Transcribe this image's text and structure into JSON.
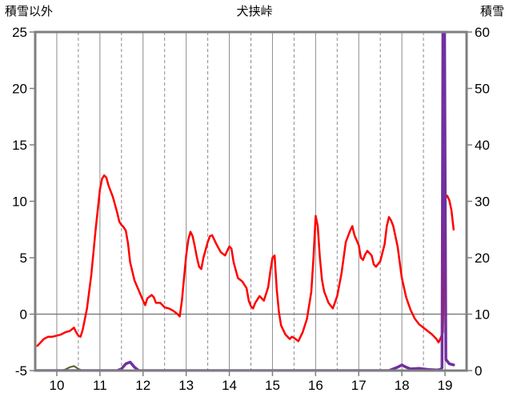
{
  "header": {
    "left_axis_title": "積雪以外",
    "chart_title": "犬挟峠",
    "right_axis_title": "積雪"
  },
  "chart_data": {
    "type": "line",
    "title": "犬挟峠",
    "grid": "vertical-only",
    "legend": "none",
    "x_axis": {
      "min": 9.5,
      "max": 19.5,
      "ticks": [
        10,
        11,
        12,
        13,
        14,
        15,
        16,
        17,
        18,
        19
      ]
    },
    "left_axis": {
      "label": "積雪以外",
      "min": -5,
      "max": 25,
      "ticks": [
        -5,
        0,
        5,
        10,
        15,
        20,
        25
      ]
    },
    "right_axis": {
      "label": "積雪",
      "min": 0,
      "max": 60,
      "ticks": [
        0,
        10,
        20,
        30,
        40,
        50,
        60
      ]
    },
    "series": [
      {
        "id": "green-line",
        "axis": "right",
        "color": "#4f6228",
        "width": 2,
        "points": [
          [
            9.5,
            0
          ],
          [
            10.1,
            0
          ],
          [
            10.2,
            0.2
          ],
          [
            10.3,
            0.6
          ],
          [
            10.4,
            0.8
          ],
          [
            10.5,
            0.3
          ],
          [
            10.6,
            0
          ],
          [
            13.0,
            0
          ],
          [
            16.0,
            0
          ],
          [
            19.2,
            0
          ]
        ]
      },
      {
        "id": "red-line",
        "axis": "left",
        "color": "#ff0000",
        "width": 2.5,
        "points": [
          [
            9.55,
            -2.8
          ],
          [
            9.6,
            -2.6
          ],
          [
            9.7,
            -2.2
          ],
          [
            9.8,
            -2.0
          ],
          [
            9.9,
            -2.0
          ],
          [
            10.0,
            -1.9
          ],
          [
            10.1,
            -1.8
          ],
          [
            10.2,
            -1.6
          ],
          [
            10.3,
            -1.5
          ],
          [
            10.4,
            -1.2
          ],
          [
            10.45,
            -1.6
          ],
          [
            10.5,
            -1.9
          ],
          [
            10.55,
            -2.0
          ],
          [
            10.6,
            -1.4
          ],
          [
            10.7,
            0.5
          ],
          [
            10.8,
            3.5
          ],
          [
            10.9,
            7.5
          ],
          [
            11.0,
            11.0
          ],
          [
            11.05,
            12.0
          ],
          [
            11.1,
            12.3
          ],
          [
            11.15,
            12.1
          ],
          [
            11.2,
            11.4
          ],
          [
            11.3,
            10.4
          ],
          [
            11.4,
            9.0
          ],
          [
            11.45,
            8.2
          ],
          [
            11.5,
            7.9
          ],
          [
            11.55,
            7.7
          ],
          [
            11.6,
            7.4
          ],
          [
            11.65,
            6.3
          ],
          [
            11.7,
            4.6
          ],
          [
            11.8,
            3.0
          ],
          [
            11.9,
            2.1
          ],
          [
            12.0,
            1.2
          ],
          [
            12.05,
            0.8
          ],
          [
            12.1,
            1.4
          ],
          [
            12.2,
            1.7
          ],
          [
            12.25,
            1.5
          ],
          [
            12.3,
            1.0
          ],
          [
            12.4,
            1.0
          ],
          [
            12.5,
            0.6
          ],
          [
            12.6,
            0.5
          ],
          [
            12.7,
            0.3
          ],
          [
            12.8,
            0.0
          ],
          [
            12.85,
            -0.2
          ],
          [
            12.9,
            1.2
          ],
          [
            13.0,
            5.2
          ],
          [
            13.05,
            6.6
          ],
          [
            13.1,
            7.3
          ],
          [
            13.15,
            6.9
          ],
          [
            13.2,
            6.0
          ],
          [
            13.25,
            5.0
          ],
          [
            13.3,
            4.2
          ],
          [
            13.35,
            4.0
          ],
          [
            13.4,
            5.0
          ],
          [
            13.5,
            6.4
          ],
          [
            13.55,
            6.9
          ],
          [
            13.6,
            7.0
          ],
          [
            13.7,
            6.2
          ],
          [
            13.8,
            5.5
          ],
          [
            13.9,
            5.2
          ],
          [
            13.95,
            5.6
          ],
          [
            14.0,
            6.0
          ],
          [
            14.05,
            5.8
          ],
          [
            14.1,
            4.6
          ],
          [
            14.2,
            3.2
          ],
          [
            14.3,
            2.9
          ],
          [
            14.4,
            2.3
          ],
          [
            14.45,
            1.2
          ],
          [
            14.5,
            0.7
          ],
          [
            14.55,
            0.5
          ],
          [
            14.6,
            1.0
          ],
          [
            14.7,
            1.6
          ],
          [
            14.8,
            1.2
          ],
          [
            14.9,
            2.4
          ],
          [
            14.95,
            3.8
          ],
          [
            15.0,
            5.0
          ],
          [
            15.05,
            5.2
          ],
          [
            15.1,
            2.2
          ],
          [
            15.15,
            0.2
          ],
          [
            15.2,
            -1.0
          ],
          [
            15.3,
            -1.8
          ],
          [
            15.4,
            -2.2
          ],
          [
            15.45,
            -2.0
          ],
          [
            15.5,
            -2.1
          ],
          [
            15.6,
            -2.4
          ],
          [
            15.7,
            -1.6
          ],
          [
            15.8,
            -0.4
          ],
          [
            15.9,
            2.0
          ],
          [
            15.95,
            5.0
          ],
          [
            16.0,
            8.7
          ],
          [
            16.05,
            7.8
          ],
          [
            16.1,
            5.0
          ],
          [
            16.15,
            3.0
          ],
          [
            16.2,
            2.0
          ],
          [
            16.3,
            1.0
          ],
          [
            16.4,
            0.5
          ],
          [
            16.5,
            1.6
          ],
          [
            16.6,
            3.6
          ],
          [
            16.7,
            6.4
          ],
          [
            16.8,
            7.4
          ],
          [
            16.85,
            7.8
          ],
          [
            16.9,
            7.0
          ],
          [
            17.0,
            6.1
          ],
          [
            17.05,
            5.0
          ],
          [
            17.1,
            4.8
          ],
          [
            17.15,
            5.3
          ],
          [
            17.2,
            5.6
          ],
          [
            17.3,
            5.2
          ],
          [
            17.35,
            4.4
          ],
          [
            17.4,
            4.2
          ],
          [
            17.5,
            4.7
          ],
          [
            17.6,
            6.2
          ],
          [
            17.65,
            7.8
          ],
          [
            17.7,
            8.6
          ],
          [
            17.75,
            8.3
          ],
          [
            17.8,
            7.8
          ],
          [
            17.9,
            6.0
          ],
          [
            18.0,
            3.2
          ],
          [
            18.1,
            1.5
          ],
          [
            18.2,
            0.4
          ],
          [
            18.3,
            -0.4
          ],
          [
            18.4,
            -0.9
          ],
          [
            18.5,
            -1.2
          ],
          [
            18.6,
            -1.5
          ],
          [
            18.7,
            -1.8
          ],
          [
            18.8,
            -2.2
          ],
          [
            18.85,
            -2.5
          ],
          [
            18.9,
            -2.1
          ],
          [
            18.95,
            -1.6
          ],
          [
            19.0,
            10.2
          ],
          [
            19.05,
            10.5
          ],
          [
            19.1,
            10.1
          ],
          [
            19.15,
            9.2
          ],
          [
            19.2,
            7.5
          ]
        ]
      },
      {
        "id": "purple-line",
        "axis": "right",
        "color": "#7030a0",
        "width": 3.5,
        "points": [
          [
            9.5,
            0
          ],
          [
            11.4,
            0
          ],
          [
            11.5,
            0.3
          ],
          [
            11.6,
            1.2
          ],
          [
            11.7,
            1.5
          ],
          [
            11.8,
            0.6
          ],
          [
            11.9,
            0
          ],
          [
            13.0,
            0
          ],
          [
            17.7,
            0
          ],
          [
            17.8,
            0.3
          ],
          [
            17.9,
            0.6
          ],
          [
            18.0,
            1.0
          ],
          [
            18.1,
            0.6
          ],
          [
            18.2,
            0.3
          ],
          [
            18.4,
            0.4
          ],
          [
            18.6,
            0.2
          ],
          [
            18.8,
            0.1
          ],
          [
            18.9,
            0.2
          ],
          [
            18.93,
            0.5
          ],
          [
            18.95,
            60
          ],
          [
            18.99,
            60
          ],
          [
            19.02,
            2
          ],
          [
            19.1,
            1.2
          ],
          [
            19.2,
            1.0
          ]
        ]
      }
    ],
    "style": {
      "frame_color": "#7f7f7f",
      "grid_color": "#8c8c8c",
      "zero_line_color": "#808080",
      "tick_font_px": 17
    }
  }
}
